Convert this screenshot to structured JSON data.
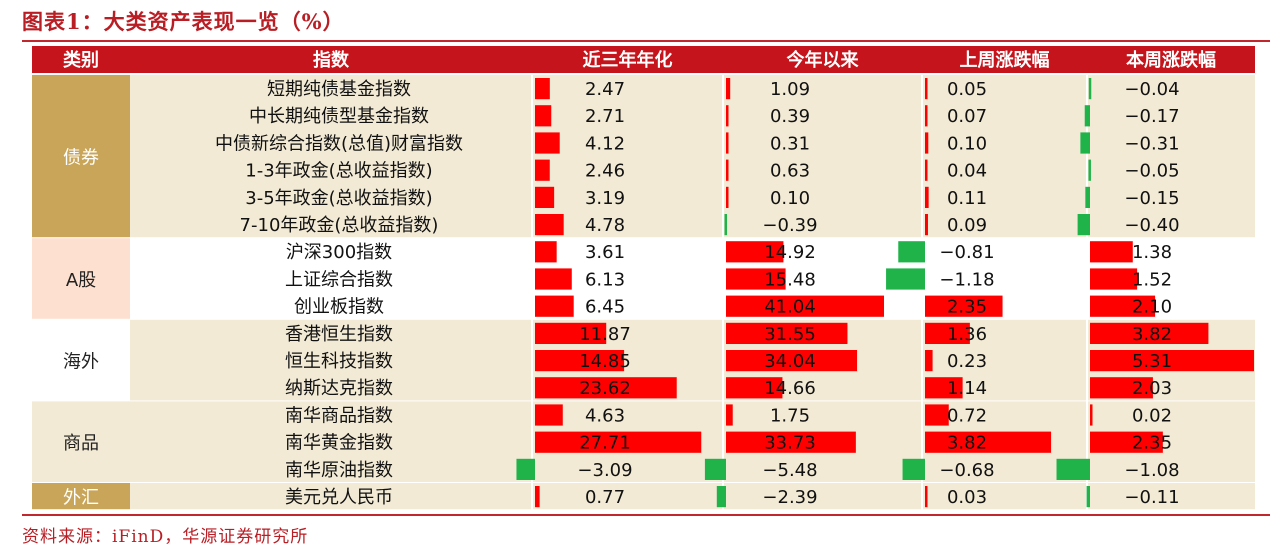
{
  "title": "图表1：大类资产表现一览（%）",
  "source": "资料来源：iFinD，华源证券研究所",
  "colors": {
    "header_bg": "#c5141b",
    "positive_bar": "#ff0000",
    "negative_bar": "#1fb34a",
    "row_band": "#f2ead5",
    "cat_bond": "#c9a55a",
    "cat_ashare": "#fde0cf",
    "cat_overseas": "#ffffff",
    "cat_commodity": "#f2ead5",
    "cat_fx": "#c9a55a"
  },
  "chart_data": {
    "type": "table",
    "columns": [
      "类别",
      "指数",
      "近三年年化",
      "今年以来",
      "上周涨跌幅",
      "本周涨跌幅"
    ],
    "categories": [
      {
        "name": "债券",
        "rows": 6,
        "style": "bond"
      },
      {
        "name": "A股",
        "rows": 3,
        "style": "ashare"
      },
      {
        "name": "海外",
        "rows": 3,
        "style": "overseas"
      },
      {
        "name": "商品",
        "rows": 3,
        "style": "commodity"
      },
      {
        "name": "外汇",
        "rows": 1,
        "style": "fx"
      }
    ],
    "rows": [
      {
        "name": "短期纯债基金指数",
        "values": [
          2.47,
          1.09,
          0.05,
          -0.04
        ]
      },
      {
        "name": "中长期纯债型基金指数",
        "values": [
          2.71,
          0.39,
          0.07,
          -0.17
        ]
      },
      {
        "name": "中债新综合指数(总值)财富指数",
        "values": [
          4.12,
          0.31,
          0.1,
          -0.31
        ]
      },
      {
        "name": "1-3年政金(总收益指数)",
        "values": [
          2.46,
          0.63,
          0.04,
          -0.05
        ]
      },
      {
        "name": "3-5年政金(总收益指数)",
        "values": [
          3.19,
          0.1,
          0.11,
          -0.15
        ]
      },
      {
        "name": "7-10年政金(总收益指数)",
        "values": [
          4.78,
          -0.39,
          0.09,
          -0.4
        ]
      },
      {
        "name": "沪深300指数",
        "values": [
          3.61,
          14.92,
          -0.81,
          1.38
        ]
      },
      {
        "name": "上证综合指数",
        "values": [
          6.13,
          15.48,
          -1.18,
          1.52
        ]
      },
      {
        "name": "创业板指数",
        "values": [
          6.45,
          41.04,
          2.35,
          2.1
        ]
      },
      {
        "name": "香港恒生指数",
        "values": [
          11.87,
          31.55,
          1.36,
          3.82
        ]
      },
      {
        "name": "恒生科技指数",
        "values": [
          14.85,
          34.04,
          0.23,
          5.31
        ]
      },
      {
        "name": "纳斯达克指数",
        "values": [
          23.62,
          14.66,
          1.14,
          2.03
        ]
      },
      {
        "name": "南华商品指数",
        "values": [
          4.63,
          1.75,
          0.72,
          0.02
        ]
      },
      {
        "name": "南华黄金指数",
        "values": [
          27.71,
          33.73,
          3.82,
          2.35
        ]
      },
      {
        "name": "南华原油指数",
        "values": [
          -3.09,
          -5.48,
          -0.68,
          -1.08
        ]
      },
      {
        "name": "美元兑人民币",
        "values": [
          0.77,
          -2.39,
          0.03,
          -0.11
        ]
      }
    ],
    "display_values": [
      [
        "2.47",
        "1.09",
        "0.05",
        "−0.04"
      ],
      [
        "2.71",
        "0.39",
        "0.07",
        "−0.17"
      ],
      [
        "4.12",
        "0.31",
        "0.10",
        "−0.31"
      ],
      [
        "2.46",
        "0.63",
        "0.04",
        "−0.05"
      ],
      [
        "3.19",
        "0.10",
        "0.11",
        "−0.15"
      ],
      [
        "4.78",
        "−0.39",
        "0.09",
        "−0.40"
      ],
      [
        "3.61",
        "14.92",
        "−0.81",
        "1.38"
      ],
      [
        "6.13",
        "15.48",
        "−1.18",
        "1.52"
      ],
      [
        "6.45",
        "41.04",
        "2.35",
        "2.10"
      ],
      [
        "11.87",
        "31.55",
        "1.36",
        "3.82"
      ],
      [
        "14.85",
        "34.04",
        "0.23",
        "5.31"
      ],
      [
        "23.62",
        "14.66",
        "1.14",
        "2.03"
      ],
      [
        "4.63",
        "1.75",
        "0.72",
        "0.02"
      ],
      [
        "27.71",
        "33.73",
        "3.82",
        "2.35"
      ],
      [
        "−3.09",
        "−5.48",
        "−0.68",
        "−1.08"
      ],
      [
        "0.77",
        "−2.39",
        "0.03",
        "−0.11"
      ]
    ]
  }
}
